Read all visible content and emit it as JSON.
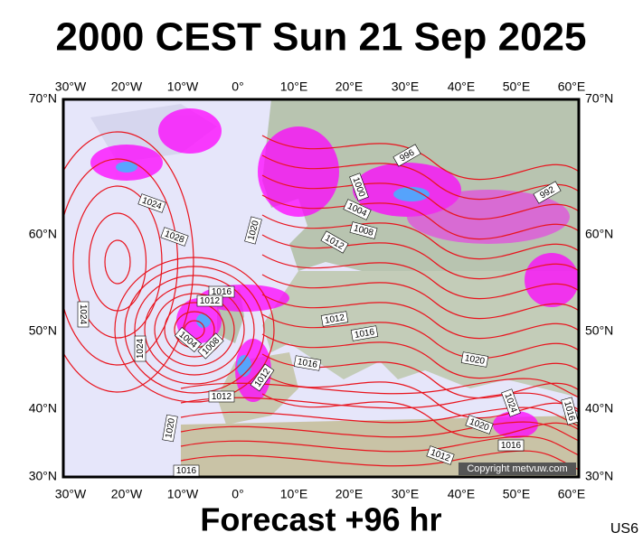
{
  "title": "2000 CEST Sun 21 Sep 2025",
  "lon_labels": [
    "30°W",
    "20°W",
    "10°W",
    "0°",
    "10°E",
    "20°E",
    "30°E",
    "40°E",
    "50°E",
    "60°E"
  ],
  "lat_labels": [
    "70°N",
    "60°N",
    "50°N",
    "40°N",
    "30°N"
  ],
  "isobar_labels": [
    "1024",
    "1028",
    "1020",
    "1016",
    "1012",
    "1004",
    "1008",
    "1024",
    "1024",
    "1020",
    "1012",
    "1012",
    "1016",
    "1012",
    "1016",
    "1000",
    "1004",
    "1008",
    "1012",
    "996",
    "992",
    "1020",
    "1024",
    "1020",
    "1016",
    "1012",
    "1016",
    "1016"
  ],
  "copyright": "Copyright metvuw.com",
  "footer": "Forecast +96 hr",
  "code": "US6"
}
